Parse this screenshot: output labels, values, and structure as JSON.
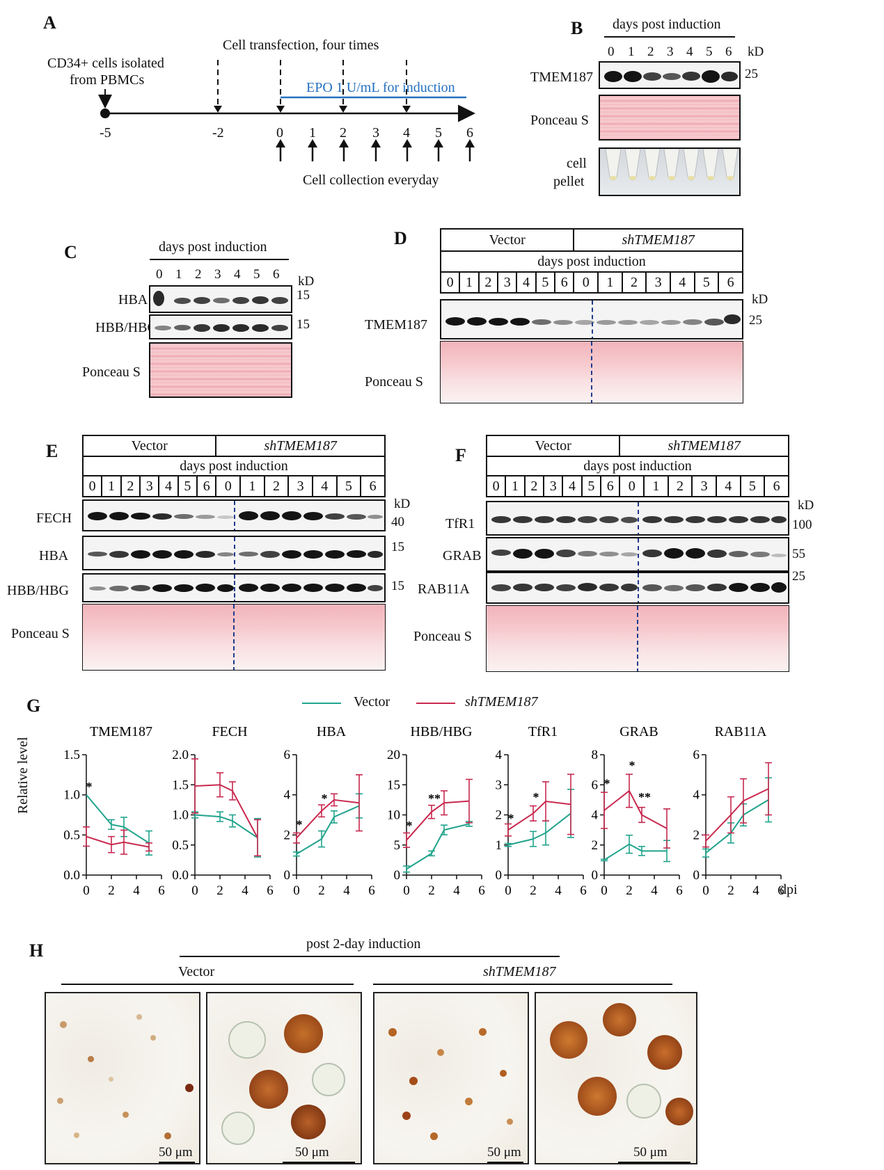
{
  "panels": {
    "A": "A",
    "B": "B",
    "C": "C",
    "D": "D",
    "E": "E",
    "F": "F",
    "G": "G",
    "H": "H"
  },
  "A": {
    "cd34": "CD34+ cells isolated",
    "pbmc": "from PBMCs",
    "transfection": "Cell transfection, four times",
    "epo": "EPO 1 U/mL for induction",
    "collection": "Cell collection everyday",
    "ticks": [
      "-5",
      "-2",
      "0",
      "1",
      "2",
      "3",
      "4",
      "5",
      "6"
    ]
  },
  "common": {
    "dpi_label": "days post induction",
    "kd": "kD",
    "days": [
      "0",
      "1",
      "2",
      "3",
      "4",
      "5",
      "6"
    ],
    "vector": "Vector",
    "sh": "shTMEM187",
    "ponceau": "Ponceau S"
  },
  "B": {
    "tmem": "TMEM187",
    "kd25": "25",
    "cell": "cell",
    "pellet": "pellet"
  },
  "C": {
    "hba": "HBA",
    "hbb": "HBB/HBG",
    "kd15a": "15",
    "kd15b": "15"
  },
  "D": {
    "tmem": "TMEM187",
    "kd25": "25"
  },
  "E": {
    "fech": "FECH",
    "hba": "HBA",
    "hbb": "HBB/HBG",
    "kd40": "40",
    "kd15a": "15",
    "kd15b": "15"
  },
  "F": {
    "tfr1": "TfR1",
    "grab": "GRAB",
    "rab": "RAB11A",
    "kd100": "100",
    "kd55": "55",
    "kd25": "25"
  },
  "G": {
    "legend_vector": "Vector",
    "legend_sh": "shTMEM187",
    "ylabel": "Relative level",
    "xunit": "dpi"
  },
  "H": {
    "header": "post 2-day induction",
    "vector": "Vector",
    "sh": "shTMEM187",
    "scale": [
      "50 μm",
      "50 μm",
      "50 μm",
      "50 μm"
    ]
  },
  "colors": {
    "vector": "#20a38c",
    "sh": "#c8294f",
    "epo": "#2470c0",
    "dashed": "#1f3a8a"
  },
  "chart_data": [
    {
      "type": "line",
      "title": "TMEM187",
      "ylabel": "Relative level",
      "xlabel": "dpi",
      "ylim": [
        0,
        1.5
      ],
      "yticks": [
        "0.0",
        "0.5",
        "1.0",
        "1.5"
      ],
      "xticks": [
        "0",
        "2",
        "4",
        "6"
      ],
      "series": [
        {
          "name": "Vector",
          "x": [
            0,
            2,
            3,
            5
          ],
          "y": [
            1.0,
            0.63,
            0.6,
            0.4
          ],
          "err": [
            0,
            0.06,
            0.12,
            0.15
          ]
        },
        {
          "name": "shTMEM187",
          "x": [
            0,
            2,
            3,
            5
          ],
          "y": [
            0.48,
            0.38,
            0.41,
            0.35
          ],
          "err": [
            0.12,
            0.1,
            0.15,
            0.05
          ]
        }
      ],
      "annotations": [
        {
          "x": 0,
          "y": 1.05,
          "text": "*"
        }
      ]
    },
    {
      "type": "line",
      "title": "FECH",
      "ylim": [
        0,
        2
      ],
      "yticks": [
        "0.0",
        "0.5",
        "1.0",
        "1.5",
        "2.0"
      ],
      "xticks": [
        "0",
        "2",
        "4",
        "6"
      ],
      "series": [
        {
          "name": "Vector",
          "x": [
            0,
            2,
            3,
            5
          ],
          "y": [
            1.0,
            0.97,
            0.9,
            0.62
          ],
          "err": [
            0.05,
            0.08,
            0.1,
            0.32
          ]
        },
        {
          "name": "shTMEM187",
          "x": [
            0,
            2,
            3,
            5
          ],
          "y": [
            1.48,
            1.5,
            1.4,
            0.62
          ],
          "err": [
            0.45,
            0.2,
            0.15,
            0.3
          ]
        }
      ],
      "annotations": []
    },
    {
      "type": "line",
      "title": "HBA",
      "ylim": [
        0,
        6
      ],
      "yticks": [
        "0",
        "2",
        "4",
        "6"
      ],
      "xticks": [
        "0",
        "2",
        "4",
        "6"
      ],
      "series": [
        {
          "name": "Vector",
          "x": [
            0,
            2,
            3,
            5
          ],
          "y": [
            1.05,
            1.8,
            2.9,
            3.45
          ],
          "err": [
            0.1,
            0.4,
            0.3,
            0.6
          ]
        },
        {
          "name": "shTMEM187",
          "x": [
            0,
            2,
            3,
            5
          ],
          "y": [
            1.85,
            3.2,
            3.75,
            3.6
          ],
          "err": [
            0.25,
            0.3,
            0.3,
            1.4
          ]
        }
      ],
      "annotations": [
        {
          "x": 0,
          "y": 2.3,
          "text": "*"
        },
        {
          "x": 2,
          "y": 3.6,
          "text": "*"
        }
      ]
    },
    {
      "type": "line",
      "title": "HBB/HBG",
      "ylim": [
        0,
        20
      ],
      "yticks": [
        "0",
        "5",
        "10",
        "15",
        "20"
      ],
      "xticks": [
        "0",
        "2",
        "4",
        "6"
      ],
      "series": [
        {
          "name": "Vector",
          "x": [
            0,
            2,
            3,
            5
          ],
          "y": [
            1.0,
            3.6,
            7.5,
            8.5
          ],
          "err": [
            0.5,
            0.4,
            0.8,
            0.4
          ]
        },
        {
          "name": "shTMEM187",
          "x": [
            0,
            2,
            3,
            5
          ],
          "y": [
            5.8,
            10.5,
            12.0,
            12.3
          ],
          "err": [
            1.2,
            1.1,
            2.0,
            3.6
          ]
        }
      ],
      "annotations": [
        {
          "x": 0,
          "y": 7.5,
          "text": "*"
        },
        {
          "x": 2,
          "y": 12.0,
          "text": "**"
        }
      ]
    },
    {
      "type": "line",
      "title": "TfR1",
      "ylim": [
        0,
        4
      ],
      "yticks": [
        "0",
        "1",
        "2",
        "3",
        "4"
      ],
      "xticks": [
        "0",
        "2",
        "4",
        "6"
      ],
      "series": [
        {
          "name": "Vector",
          "x": [
            0,
            2,
            3,
            5
          ],
          "y": [
            1.0,
            1.2,
            1.4,
            2.05
          ],
          "err": [
            0.05,
            0.25,
            0.4,
            0.8
          ]
        },
        {
          "name": "shTMEM187",
          "x": [
            0,
            2,
            3,
            5
          ],
          "y": [
            1.5,
            2.05,
            2.45,
            2.35
          ],
          "err": [
            0.2,
            0.25,
            0.65,
            1.0
          ]
        }
      ],
      "annotations": [
        {
          "x": 0,
          "y": 1.75,
          "text": "*"
        },
        {
          "x": 2,
          "y": 2.45,
          "text": "*"
        }
      ]
    },
    {
      "type": "line",
      "title": "GRAB",
      "ylim": [
        0,
        8
      ],
      "yticks": [
        "0",
        "2",
        "4",
        "6",
        "8"
      ],
      "xticks": [
        "0",
        "2",
        "4",
        "6"
      ],
      "series": [
        {
          "name": "Vector",
          "x": [
            0,
            2,
            3,
            5
          ],
          "y": [
            1.0,
            2.05,
            1.6,
            1.6
          ],
          "err": [
            0.05,
            0.6,
            0.3,
            0.7
          ]
        },
        {
          "name": "shTMEM187",
          "x": [
            0,
            2,
            3,
            5
          ],
          "y": [
            4.3,
            5.6,
            4.0,
            3.1
          ],
          "err": [
            1.2,
            1.1,
            0.5,
            1.3
          ]
        }
      ],
      "annotations": [
        {
          "x": 0,
          "y": 5.8,
          "text": "*"
        },
        {
          "x": 2,
          "y": 7.0,
          "text": "*"
        },
        {
          "x": 3,
          "y": 4.9,
          "text": "**"
        }
      ]
    },
    {
      "type": "line",
      "title": "RAB11A",
      "ylim": [
        0,
        6
      ],
      "yticks": [
        "0",
        "2",
        "4",
        "6"
      ],
      "xticks": [
        "0",
        "2",
        "4",
        "6"
      ],
      "series": [
        {
          "name": "Vector",
          "x": [
            0,
            2,
            3,
            5
          ],
          "y": [
            1.1,
            2.1,
            3.0,
            3.75
          ],
          "err": [
            0.2,
            0.5,
            0.55,
            1.1
          ]
        },
        {
          "name": "shTMEM187",
          "x": [
            0,
            2,
            3,
            5
          ],
          "y": [
            1.7,
            3.0,
            3.7,
            4.3
          ],
          "err": [
            0.3,
            0.9,
            1.1,
            1.3
          ]
        }
      ],
      "annotations": []
    }
  ]
}
